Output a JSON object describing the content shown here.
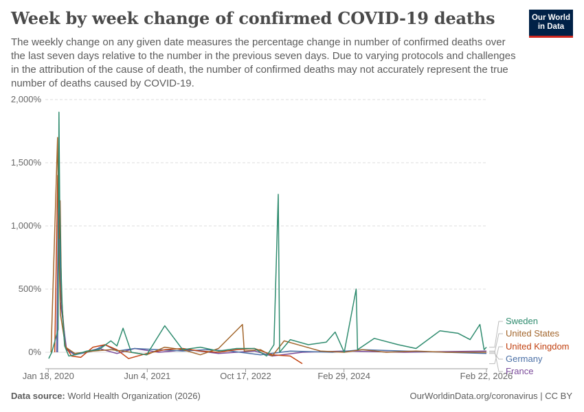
{
  "title": "Week by week change of confirmed COVID-19 deaths",
  "subtitle": "The weekly change on any given date measures the percentage change in number of confirmed deaths over the last seven days relative to the number in the previous seven days. Due to varying protocols and challenges in the attribution of the cause of death, the number of confirmed deaths may not accurately represent the true number of deaths caused by COVID-19.",
  "logo": {
    "line1": "Our World",
    "line2": "in Data"
  },
  "footer": {
    "source_label": "Data source:",
    "source_value": "World Health Organization (2026)",
    "right": "OurWorldinData.org/coronavirus | CC BY"
  },
  "colors": {
    "Sweden": "#2e8b6e",
    "United States": "#a2652b",
    "United Kingdom": "#c1400f",
    "Germany": "#4a6fa5",
    "France": "#7a4a9a",
    "grid": "#dddddd",
    "axis_text": "#666666"
  },
  "chart_data": {
    "type": "line",
    "title": "",
    "xlabel": "",
    "ylabel": "",
    "ylim": [
      -100,
      2000
    ],
    "grid": "horizontal dashed",
    "legend": "right, inline labels",
    "y_ticks": [
      {
        "v": 0,
        "label": "0%"
      },
      {
        "v": 500,
        "label": "500%"
      },
      {
        "v": 1000,
        "label": "1,000%"
      },
      {
        "v": 1500,
        "label": "1,500%"
      },
      {
        "v": 2000,
        "label": "2,000%"
      }
    ],
    "x_range": [
      "2020-01-03",
      "2026-03-01"
    ],
    "x_ticks": [
      "2020-01-18",
      "2021-06-04",
      "2022-10-17",
      "2024-02-29",
      "2026-02-22"
    ],
    "x_tick_labels": [
      "Jan 18, 2020",
      "Jun 4, 2021",
      "Oct 17, 2022",
      "Feb 29, 2024",
      "Feb 22, 2026"
    ],
    "series": [
      {
        "name": "Sweden",
        "points": [
          [
            "2020-01-20",
            -50
          ],
          [
            "2020-02-05",
            0
          ],
          [
            "2020-03-08",
            180
          ],
          [
            "2020-03-12",
            1900
          ],
          [
            "2020-03-16",
            1200
          ],
          [
            "2020-03-22",
            700
          ],
          [
            "2020-03-30",
            300
          ],
          [
            "2020-04-10",
            50
          ],
          [
            "2020-05-01",
            -30
          ],
          [
            "2020-06-01",
            -20
          ],
          [
            "2020-08-01",
            10
          ],
          [
            "2020-10-01",
            20
          ],
          [
            "2020-12-01",
            90
          ],
          [
            "2021-01-01",
            50
          ],
          [
            "2021-02-01",
            190
          ],
          [
            "2021-03-15",
            0
          ],
          [
            "2021-06-01",
            -20
          ],
          [
            "2021-09-01",
            210
          ],
          [
            "2021-12-01",
            20
          ],
          [
            "2022-03-01",
            40
          ],
          [
            "2022-06-01",
            10
          ],
          [
            "2022-09-01",
            30
          ],
          [
            "2022-12-01",
            30
          ],
          [
            "2023-02-01",
            -30
          ],
          [
            "2023-03-10",
            60
          ],
          [
            "2023-04-01",
            1250
          ],
          [
            "2023-04-08",
            0
          ],
          [
            "2023-06-01",
            100
          ],
          [
            "2023-09-01",
            60
          ],
          [
            "2023-12-01",
            80
          ],
          [
            "2024-01-15",
            160
          ],
          [
            "2024-03-01",
            0
          ],
          [
            "2024-05-01",
            500
          ],
          [
            "2024-05-08",
            20
          ],
          [
            "2024-08-01",
            110
          ],
          [
            "2024-12-01",
            60
          ],
          [
            "2025-03-01",
            30
          ],
          [
            "2025-07-01",
            170
          ],
          [
            "2025-10-01",
            150
          ],
          [
            "2025-12-01",
            100
          ],
          [
            "2026-01-20",
            220
          ],
          [
            "2026-02-10",
            20
          ],
          [
            "2026-02-22",
            40
          ]
        ]
      },
      {
        "name": "United States",
        "points": [
          [
            "2020-02-01",
            0
          ],
          [
            "2020-03-05",
            1700
          ],
          [
            "2020-03-12",
            800
          ],
          [
            "2020-03-20",
            300
          ],
          [
            "2020-04-15",
            40
          ],
          [
            "2020-06-01",
            -10
          ],
          [
            "2020-09-01",
            10
          ],
          [
            "2020-12-01",
            20
          ],
          [
            "2021-02-01",
            10
          ],
          [
            "2021-06-01",
            -20
          ],
          [
            "2021-09-01",
            40
          ],
          [
            "2021-12-01",
            20
          ],
          [
            "2022-03-01",
            -20
          ],
          [
            "2022-06-01",
            30
          ],
          [
            "2022-10-01",
            220
          ],
          [
            "2022-10-10",
            10
          ],
          [
            "2023-01-01",
            20
          ],
          [
            "2023-03-01",
            -30
          ],
          [
            "2023-05-01",
            90
          ],
          [
            "2023-08-01",
            50
          ],
          [
            "2023-11-01",
            10
          ],
          [
            "2024-03-01",
            0
          ],
          [
            "2024-06-01",
            20
          ],
          [
            "2024-10-01",
            0
          ],
          [
            "2025-03-01",
            10
          ],
          [
            "2025-08-01",
            0
          ],
          [
            "2026-02-22",
            0
          ]
        ]
      },
      {
        "name": "United Kingdom",
        "points": [
          [
            "2020-02-20",
            0
          ],
          [
            "2020-03-06",
            1400
          ],
          [
            "2020-03-14",
            900
          ],
          [
            "2020-03-18",
            1200
          ],
          [
            "2020-03-25",
            450
          ],
          [
            "2020-04-10",
            60
          ],
          [
            "2020-05-15",
            -30
          ],
          [
            "2020-07-01",
            -40
          ],
          [
            "2020-09-01",
            40
          ],
          [
            "2020-11-01",
            60
          ],
          [
            "2021-01-01",
            20
          ],
          [
            "2021-03-01",
            -50
          ],
          [
            "2021-06-01",
            -10
          ],
          [
            "2021-09-01",
            20
          ],
          [
            "2021-12-01",
            30
          ],
          [
            "2022-03-01",
            10
          ],
          [
            "2022-06-01",
            0
          ],
          [
            "2022-09-01",
            20
          ],
          [
            "2022-12-01",
            30
          ],
          [
            "2023-03-01",
            -20
          ],
          [
            "2023-06-01",
            -30
          ],
          [
            "2023-08-01",
            -90
          ]
        ]
      },
      {
        "name": "Germany",
        "points": [
          [
            "2020-03-05",
            0
          ],
          [
            "2020-03-12",
            1450
          ],
          [
            "2020-03-20",
            500
          ],
          [
            "2020-04-15",
            40
          ],
          [
            "2020-06-01",
            -20
          ],
          [
            "2020-09-01",
            10
          ],
          [
            "2020-11-01",
            60
          ],
          [
            "2021-01-01",
            10
          ],
          [
            "2021-04-01",
            30
          ],
          [
            "2021-08-01",
            20
          ],
          [
            "2021-12-01",
            10
          ],
          [
            "2022-04-01",
            20
          ],
          [
            "2022-08-01",
            10
          ],
          [
            "2023-01-01",
            -20
          ],
          [
            "2023-06-01",
            10
          ],
          [
            "2024-01-01",
            0
          ],
          [
            "2024-06-01",
            20
          ],
          [
            "2025-01-01",
            10
          ],
          [
            "2025-08-01",
            0
          ],
          [
            "2026-02-22",
            -10
          ]
        ]
      },
      {
        "name": "France",
        "points": [
          [
            "2020-03-01",
            0
          ],
          [
            "2020-03-10",
            1300
          ],
          [
            "2020-03-20",
            400
          ],
          [
            "2020-04-20",
            20
          ],
          [
            "2020-06-01",
            -20
          ],
          [
            "2020-10-01",
            30
          ],
          [
            "2021-01-01",
            -10
          ],
          [
            "2021-04-01",
            30
          ],
          [
            "2021-08-01",
            0
          ],
          [
            "2022-01-01",
            20
          ],
          [
            "2022-06-01",
            -10
          ],
          [
            "2022-12-01",
            10
          ],
          [
            "2023-03-01",
            -30
          ],
          [
            "2023-08-01",
            0
          ],
          [
            "2024-03-01",
            10
          ],
          [
            "2025-01-01",
            0
          ],
          [
            "2026-02-22",
            10
          ]
        ]
      }
    ]
  }
}
